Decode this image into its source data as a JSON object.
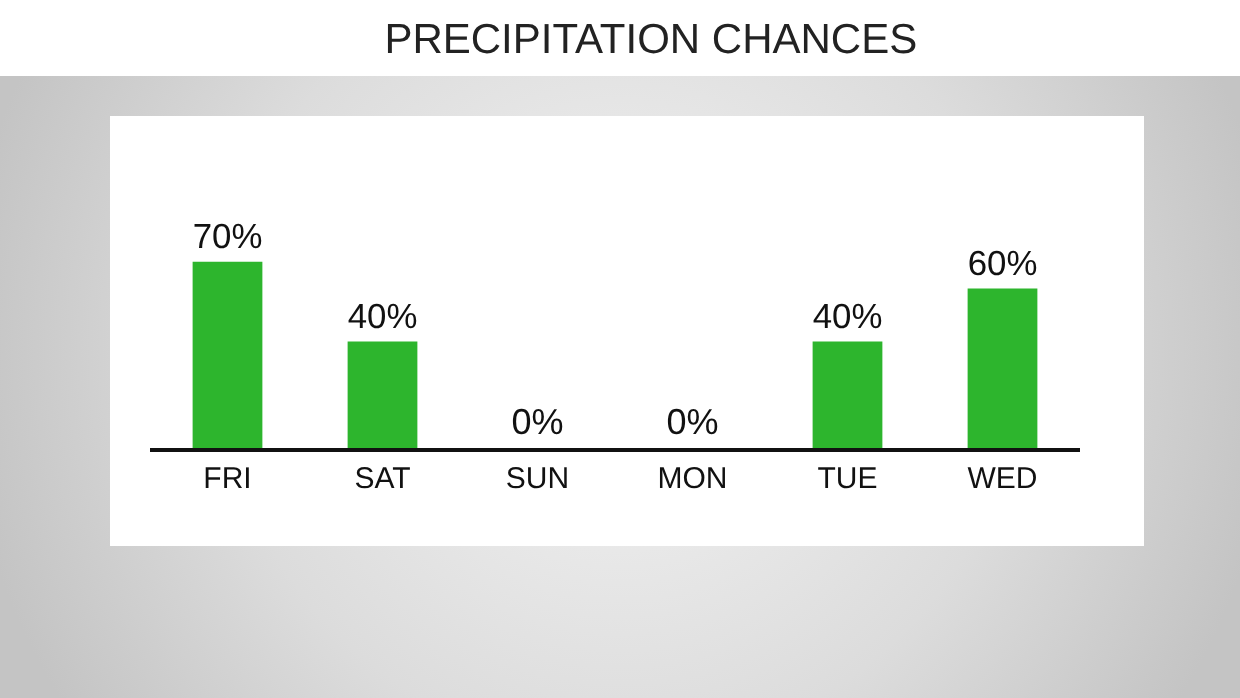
{
  "chart_data": {
    "type": "bar",
    "title": "PRECIPITATION CHANCES",
    "categories": [
      "FRI",
      "SAT",
      "SUN",
      "MON",
      "TUE",
      "WED"
    ],
    "values": [
      70,
      40,
      0,
      0,
      40,
      60
    ],
    "value_labels": [
      "70%",
      "40%",
      "0%",
      "0%",
      "40%",
      "60%"
    ],
    "color": "#2db52d"
  }
}
